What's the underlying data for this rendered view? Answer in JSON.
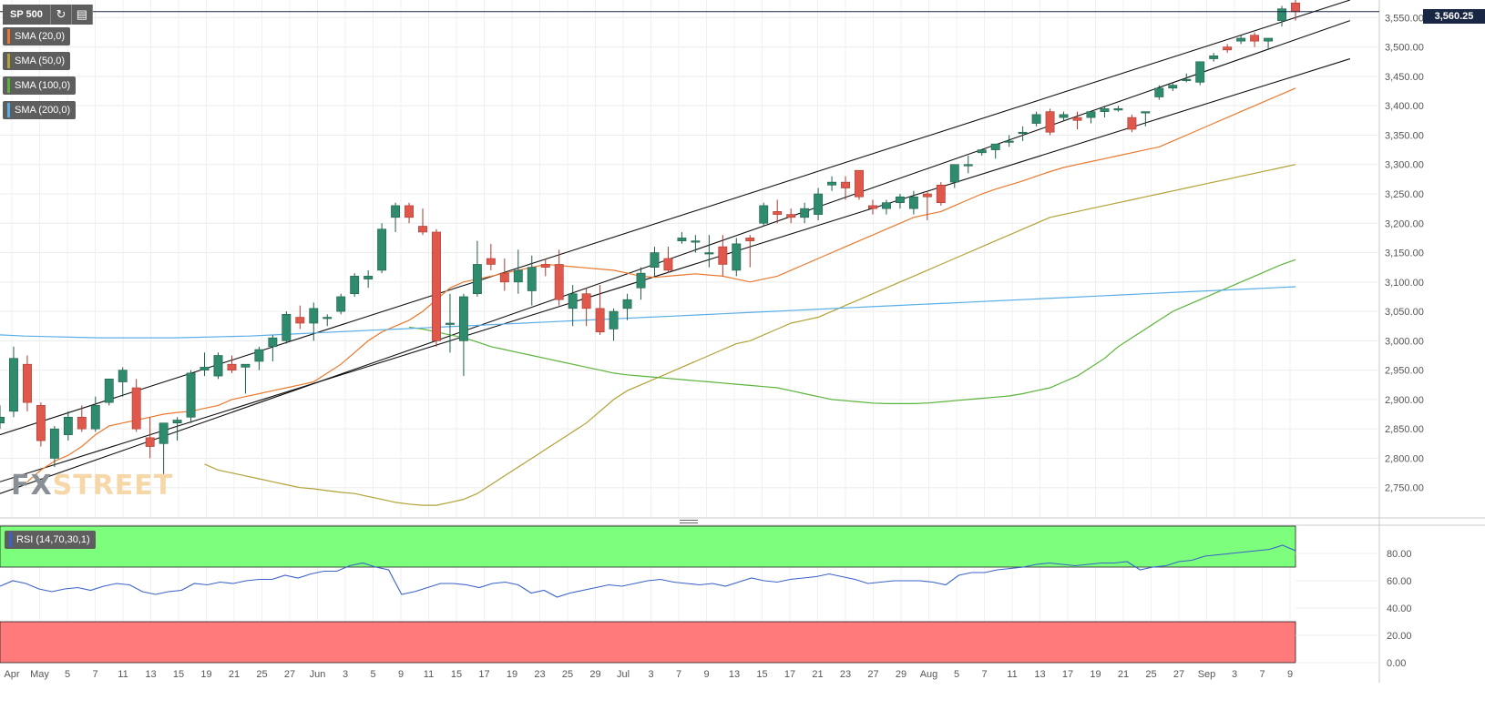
{
  "toolbar": {
    "symbol": "SP 500",
    "refresh_icon": "refresh-icon",
    "chart_type_icon": "bar-chart-icon"
  },
  "legend": [
    {
      "label": "SMA (20,0)",
      "color": "#e8792f"
    },
    {
      "label": "SMA (50,0)",
      "color": "#b1a236"
    },
    {
      "label": "SMA (100,0)",
      "color": "#5bb33a"
    },
    {
      "label": "SMA (200,0)",
      "color": "#5aaee8"
    }
  ],
  "last_price": "3,560.25",
  "watermark": {
    "part1": "FX",
    "part2": "STREET"
  },
  "rsi": {
    "label": "RSI (14,70,30,1)",
    "color": "#3a62c9"
  },
  "chart_data": {
    "type": "candlestick",
    "price_axis": {
      "ticks": [
        "3,550.00",
        "3,500.00",
        "3,450.00",
        "3,400.00",
        "3,350.00",
        "3,300.00",
        "3,250.00",
        "3,200.00",
        "3,150.00",
        "3,100.00",
        "3,050.00",
        "3,000.00",
        "2,950.00",
        "2,900.00",
        "2,850.00",
        "2,800.00",
        "2,750.00"
      ],
      "ylim": [
        2700,
        3580
      ]
    },
    "date_axis": {
      "ticks": [
        "Apr",
        "May",
        "5",
        "7",
        "11",
        "13",
        "15",
        "19",
        "21",
        "25",
        "27",
        "Jun",
        "3",
        "5",
        "9",
        "11",
        "15",
        "17",
        "19",
        "23",
        "25",
        "29",
        "Jul",
        "3",
        "7",
        "9",
        "13",
        "15",
        "17",
        "21",
        "23",
        "27",
        "29",
        "Aug",
        "5",
        "7",
        "11",
        "13",
        "17",
        "19",
        "21",
        "25",
        "27",
        "Sep",
        "3",
        "7",
        "9"
      ]
    },
    "candles": [
      [
        2860,
        2890,
        2850,
        2870
      ],
      [
        2880,
        2990,
        2870,
        2970
      ],
      [
        2960,
        2975,
        2880,
        2895
      ],
      [
        2890,
        2895,
        2820,
        2830
      ],
      [
        2800,
        2855,
        2785,
        2850
      ],
      [
        2840,
        2880,
        2830,
        2870
      ],
      [
        2870,
        2890,
        2845,
        2850
      ],
      [
        2850,
        2905,
        2845,
        2890
      ],
      [
        2895,
        2935,
        2890,
        2935
      ],
      [
        2930,
        2955,
        2905,
        2950
      ],
      [
        2920,
        2935,
        2845,
        2850
      ],
      [
        2835,
        2870,
        2800,
        2820
      ],
      [
        2825,
        2860,
        2770,
        2860
      ],
      [
        2860,
        2870,
        2830,
        2865
      ],
      [
        2870,
        2950,
        2860,
        2945
      ],
      [
        2950,
        2980,
        2940,
        2955
      ],
      [
        2940,
        2980,
        2935,
        2975
      ],
      [
        2960,
        2975,
        2945,
        2950
      ],
      [
        2955,
        2960,
        2910,
        2960
      ],
      [
        2965,
        2990,
        2950,
        2985
      ],
      [
        2990,
        3010,
        2965,
        3005
      ],
      [
        3000,
        3050,
        2995,
        3045
      ],
      [
        3040,
        3060,
        3020,
        3030
      ],
      [
        3030,
        3065,
        3000,
        3055
      ],
      [
        3040,
        3045,
        3025,
        3040
      ],
      [
        3050,
        3080,
        3045,
        3075
      ],
      [
        3080,
        3115,
        3075,
        3110
      ],
      [
        3105,
        3120,
        3090,
        3110
      ],
      [
        3120,
        3200,
        3115,
        3190
      ],
      [
        3210,
        3235,
        3185,
        3230
      ],
      [
        3230,
        3235,
        3200,
        3210
      ],
      [
        3195,
        3225,
        3180,
        3185
      ],
      [
        3185,
        3190,
        2990,
        3000
      ],
      [
        3030,
        3080,
        2980,
        3030
      ],
      [
        3000,
        3080,
        2940,
        3075
      ],
      [
        3080,
        3170,
        3075,
        3130
      ],
      [
        3140,
        3165,
        3120,
        3130
      ],
      [
        3115,
        3140,
        3085,
        3100
      ],
      [
        3100,
        3155,
        3080,
        3120
      ],
      [
        3085,
        3145,
        3060,
        3125
      ],
      [
        3130,
        3140,
        3110,
        3125
      ],
      [
        3130,
        3155,
        3060,
        3070
      ],
      [
        3055,
        3095,
        3025,
        3080
      ],
      [
        3080,
        3090,
        3025,
        3055
      ],
      [
        3055,
        3095,
        3010,
        3015
      ],
      [
        3020,
        3055,
        3000,
        3050
      ],
      [
        3055,
        3080,
        3035,
        3070
      ],
      [
        3090,
        3125,
        3070,
        3115
      ],
      [
        3125,
        3160,
        3110,
        3150
      ],
      [
        3140,
        3160,
        3115,
        3120
      ],
      [
        3170,
        3185,
        3165,
        3175
      ],
      [
        3170,
        3180,
        3150,
        3170
      ],
      [
        3150,
        3180,
        3125,
        3150
      ],
      [
        3160,
        3180,
        3110,
        3130
      ],
      [
        3120,
        3175,
        3110,
        3165
      ],
      [
        3175,
        3180,
        3125,
        3170
      ],
      [
        3200,
        3235,
        3195,
        3230
      ],
      [
        3220,
        3240,
        3200,
        3215
      ],
      [
        3215,
        3225,
        3200,
        3210
      ],
      [
        3210,
        3235,
        3200,
        3225
      ],
      [
        3215,
        3260,
        3205,
        3250
      ],
      [
        3265,
        3280,
        3255,
        3270
      ],
      [
        3270,
        3280,
        3240,
        3260
      ],
      [
        3290,
        3290,
        3240,
        3245
      ],
      [
        3230,
        3240,
        3215,
        3225
      ],
      [
        3225,
        3240,
        3215,
        3235
      ],
      [
        3235,
        3250,
        3225,
        3245
      ],
      [
        3225,
        3255,
        3215,
        3245
      ],
      [
        3250,
        3255,
        3205,
        3245
      ],
      [
        3265,
        3270,
        3230,
        3235
      ],
      [
        3270,
        3300,
        3260,
        3300
      ],
      [
        3300,
        3315,
        3285,
        3300
      ],
      [
        3320,
        3325,
        3315,
        3325
      ],
      [
        3325,
        3335,
        3310,
        3335
      ],
      [
        3340,
        3350,
        3330,
        3340
      ],
      [
        3355,
        3365,
        3340,
        3355
      ],
      [
        3370,
        3390,
        3365,
        3385
      ],
      [
        3390,
        3395,
        3350,
        3355
      ],
      [
        3380,
        3390,
        3375,
        3385
      ],
      [
        3380,
        3390,
        3360,
        3375
      ],
      [
        3380,
        3390,
        3370,
        3390
      ],
      [
        3390,
        3400,
        3380,
        3395
      ],
      [
        3395,
        3400,
        3390,
        3395
      ],
      [
        3380,
        3385,
        3355,
        3360
      ],
      [
        3390,
        3390,
        3365,
        3390
      ],
      [
        3415,
        3435,
        3410,
        3430
      ],
      [
        3430,
        3440,
        3425,
        3435
      ],
      [
        3445,
        3455,
        3440,
        3445
      ],
      [
        3440,
        3475,
        3435,
        3475
      ],
      [
        3480,
        3490,
        3475,
        3485
      ],
      [
        3500,
        3505,
        3490,
        3495
      ],
      [
        3510,
        3520,
        3505,
        3515
      ],
      [
        3520,
        3525,
        3500,
        3510
      ],
      [
        3510,
        3515,
        3495,
        3515
      ],
      [
        3545,
        3570,
        3535,
        3565
      ],
      [
        3575,
        3585,
        3545,
        3560
      ]
    ],
    "channel_lines": [
      {
        "from": [
          0,
          2840
        ],
        "to": [
          99,
          3580
        ]
      },
      {
        "from": [
          0,
          2740
        ],
        "to": [
          99,
          3545
        ]
      },
      {
        "from": [
          0,
          2760
        ],
        "to": [
          99,
          3480
        ]
      }
    ],
    "sma": {
      "SMA (20,0)": [
        2760,
        2780,
        2795,
        2805,
        2820,
        2840,
        2855,
        2860,
        2865,
        2870,
        2875,
        2878,
        2880,
        2885,
        2890,
        2900,
        2905,
        2910,
        2915,
        2920,
        2925,
        2930,
        2945,
        2960,
        2980,
        3000,
        3015,
        3025,
        3035,
        3050,
        3070,
        3090,
        3100,
        3105,
        3110,
        3115,
        3120,
        3125,
        3130,
        3128,
        3126,
        3124,
        3122,
        3120,
        3115,
        3110,
        3108,
        3110,
        3112,
        3114,
        3112,
        3110,
        3105,
        3100,
        3105,
        3110,
        3120,
        3130,
        3140,
        3150,
        3160,
        3170,
        3180,
        3190,
        3200,
        3210,
        3215,
        3220,
        3230,
        3240,
        3250,
        3258,
        3265,
        3272,
        3280,
        3288,
        3295,
        3300,
        3305,
        3310,
        3315,
        3320,
        3325,
        3330,
        3340,
        3350,
        3360,
        3370,
        3380,
        3390,
        3400,
        3410,
        3420,
        3430
      ],
      "SMA (50,0)": [
        2790,
        2780,
        2775,
        2770,
        2765,
        2760,
        2755,
        2750,
        2748,
        2745,
        2742,
        2740,
        2735,
        2730,
        2725,
        2722,
        2720,
        2720,
        2725,
        2730,
        2740,
        2755,
        2770,
        2785,
        2800,
        2815,
        2830,
        2845,
        2860,
        2880,
        2900,
        2915,
        2925,
        2935,
        2945,
        2955,
        2965,
        2975,
        2985,
        2995,
        3000,
        3010,
        3020,
        3030,
        3035,
        3040,
        3050,
        3060,
        3070,
        3080,
        3090,
        3100,
        3110,
        3120,
        3130,
        3140,
        3150,
        3160,
        3170,
        3180,
        3190,
        3200,
        3210,
        3215,
        3220,
        3225,
        3230,
        3235,
        3240,
        3245,
        3250,
        3255,
        3260,
        3265,
        3270,
        3275,
        3280,
        3285,
        3290,
        3295,
        3300
      ],
      "SMA (100,0)": [
        3023,
        3020,
        3015,
        3010,
        3005,
        2998,
        2990,
        2985,
        2980,
        2975,
        2970,
        2965,
        2960,
        2955,
        2950,
        2945,
        2942,
        2940,
        2938,
        2936,
        2934,
        2932,
        2930,
        2928,
        2926,
        2924,
        2922,
        2920,
        2915,
        2910,
        2905,
        2900,
        2898,
        2896,
        2894,
        2893,
        2893,
        2893,
        2894,
        2896,
        2898,
        2900,
        2902,
        2904,
        2906,
        2910,
        2915,
        2920,
        2930,
        2940,
        2955,
        2970,
        2990,
        3005,
        3020,
        3035,
        3050,
        3060,
        3070,
        3080,
        3090,
        3100,
        3110,
        3120,
        3130,
        3138
      ],
      "SMA (200,0)": [
        3010,
        3008,
        3007,
        3006,
        3005,
        3005,
        3005,
        3005,
        3006,
        3007,
        3008,
        3010,
        3012,
        3014,
        3016,
        3018,
        3020,
        3022,
        3024,
        3026,
        3028,
        3030,
        3032,
        3034,
        3036,
        3038,
        3040,
        3042,
        3044,
        3046,
        3048,
        3050,
        3052,
        3054,
        3056,
        3058,
        3060,
        3062,
        3064,
        3066,
        3068,
        3070,
        3072,
        3074,
        3076,
        3078,
        3080,
        3082,
        3084,
        3086,
        3088,
        3090,
        3092
      ]
    },
    "rsi_panel": {
      "ticks": [
        "80.00",
        "60.00",
        "40.00",
        "20.00",
        "0.00"
      ],
      "ylim": [
        0,
        100
      ],
      "overbought": 70,
      "oversold": 30,
      "values": [
        56,
        60,
        58,
        54,
        52,
        54,
        55,
        53,
        56,
        58,
        57,
        52,
        50,
        52,
        53,
        58,
        57,
        59,
        58,
        60,
        61,
        61,
        64,
        62,
        65,
        67,
        67,
        71,
        73,
        70,
        68,
        50,
        52,
        55,
        58,
        58,
        57,
        55,
        58,
        59,
        57,
        51,
        53,
        48,
        51,
        53,
        55,
        57,
        56,
        58,
        60,
        61,
        59,
        58,
        57,
        58,
        56,
        59,
        62,
        60,
        59,
        61,
        62,
        63,
        65,
        63,
        61,
        58,
        59,
        60,
        60,
        60,
        59,
        57,
        64,
        66,
        66,
        68,
        69,
        70,
        72,
        73,
        72,
        71,
        72,
        73,
        73,
        74,
        68,
        70,
        71,
        74,
        75,
        78,
        79,
        80,
        81,
        82,
        83,
        86,
        82
      ]
    }
  }
}
